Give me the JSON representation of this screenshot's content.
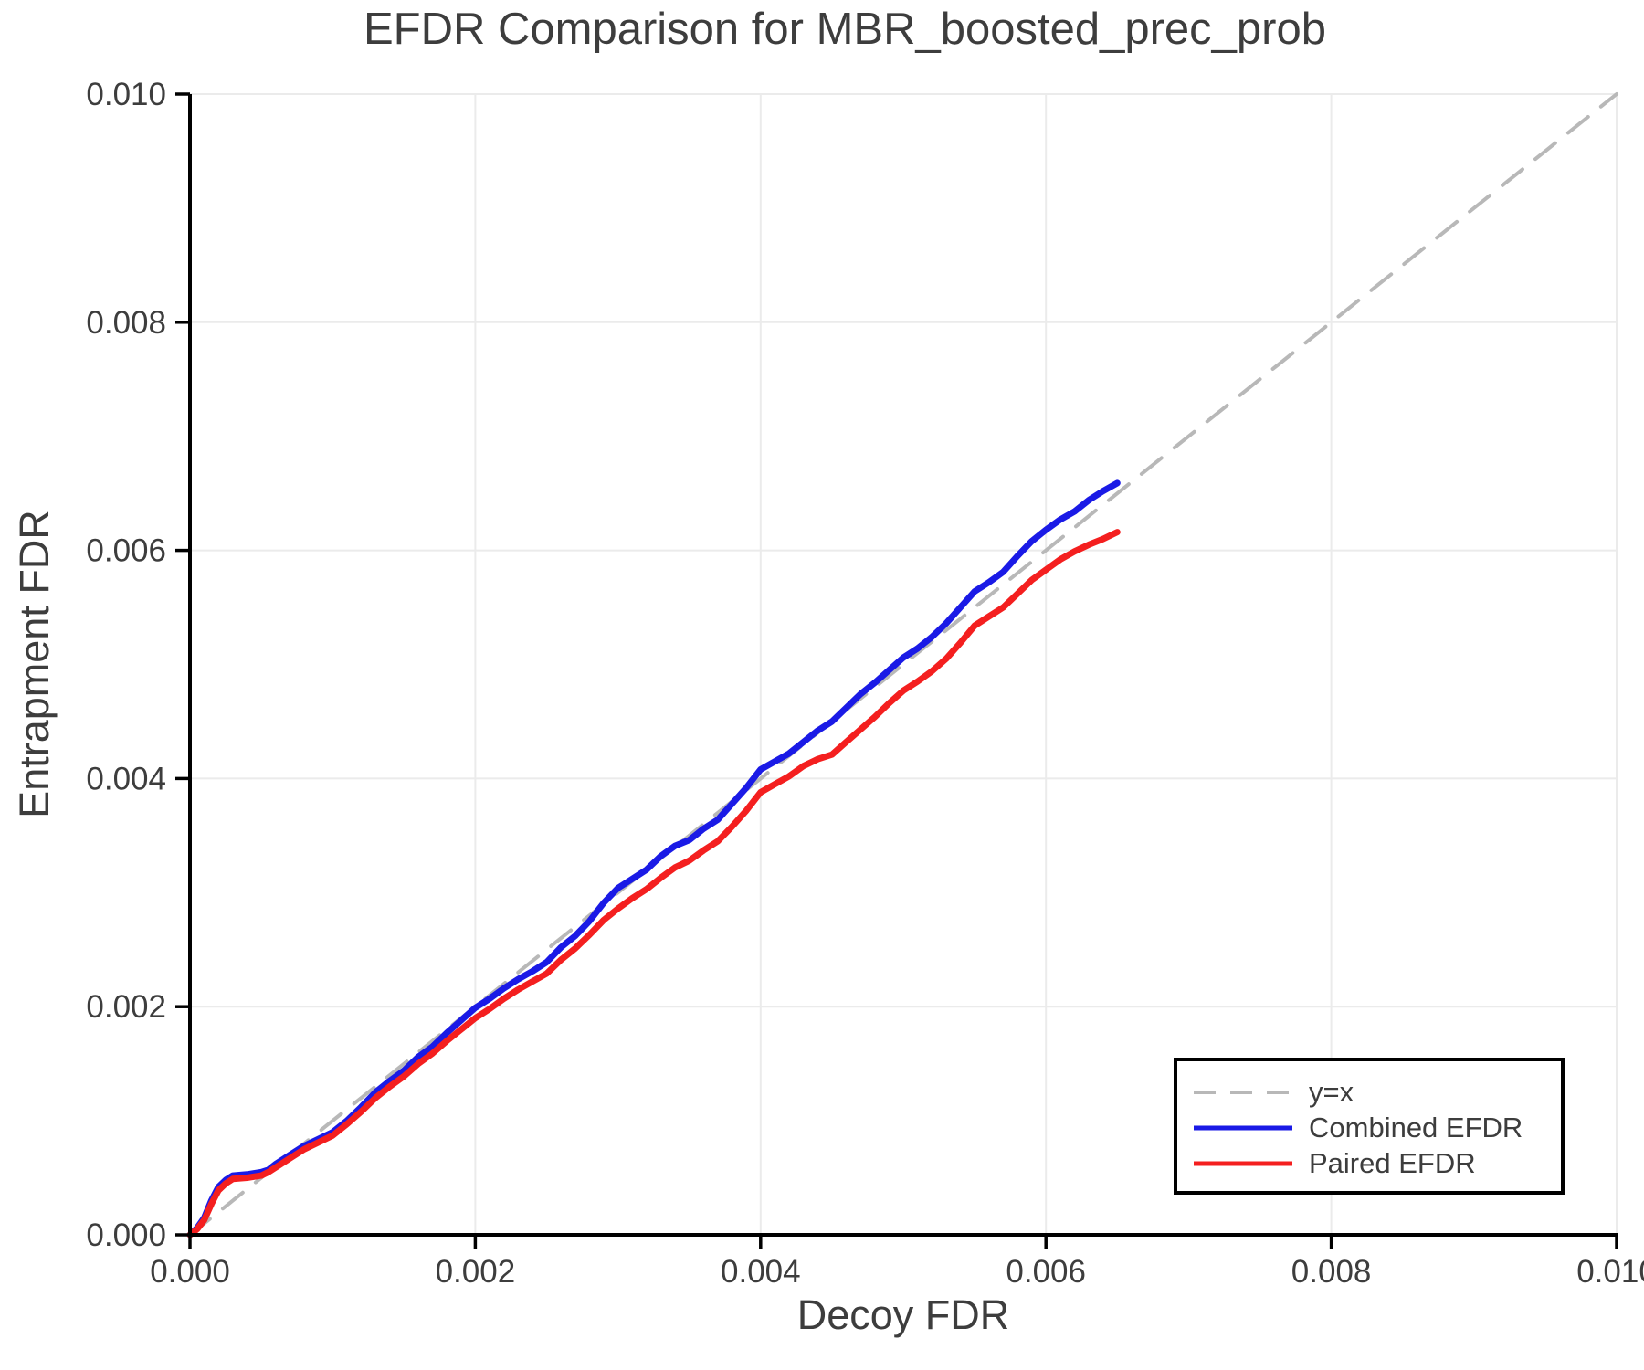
{
  "chart_data": {
    "type": "line",
    "title": "EFDR Comparison for MBR_boosted_prec_prob",
    "xlabel": "Decoy FDR",
    "ylabel": "Entrapment FDR",
    "xlim": [
      0,
      0.01
    ],
    "ylim": [
      0,
      0.01
    ],
    "xticks": [
      0,
      0.002,
      0.004,
      0.006,
      0.008,
      0.01
    ],
    "yticks": [
      0,
      0.002,
      0.004,
      0.006,
      0.008,
      0.01
    ],
    "tick_decimals": 3,
    "grid": true,
    "grid_color": "#ebebeb",
    "axis_color": "#000000",
    "text_color": "#3d3d3d",
    "legend_position": "bottom-right",
    "series": [
      {
        "name": "y=x",
        "style": "dashed",
        "color": "#b8b8b8",
        "stroke_width": 4,
        "x": [
          0,
          0.01
        ],
        "y": [
          0,
          0.01
        ]
      },
      {
        "name": "Combined EFDR",
        "style": "solid",
        "color": "#1a1ae6",
        "stroke_width": 7,
        "x": [
          0,
          5e-05,
          0.0001,
          0.00015,
          0.0002,
          0.00025,
          0.0003,
          0.0004,
          0.0005,
          0.00055,
          0.0006,
          0.0007,
          0.0008,
          0.0009,
          0.001,
          0.0011,
          0.0012,
          0.0013,
          0.0014,
          0.0015,
          0.0016,
          0.0017,
          0.0018,
          0.0019,
          0.002,
          0.0021,
          0.0022,
          0.0023,
          0.0024,
          0.0025,
          0.0026,
          0.0027,
          0.0028,
          0.0029,
          0.003,
          0.0031,
          0.0032,
          0.0033,
          0.0034,
          0.0035,
          0.0036,
          0.0037,
          0.0038,
          0.0039,
          0.004,
          0.0041,
          0.0042,
          0.0043,
          0.0044,
          0.0045,
          0.0046,
          0.0047,
          0.0048,
          0.0049,
          0.005,
          0.0051,
          0.0052,
          0.0053,
          0.0054,
          0.0055,
          0.0056,
          0.0057,
          0.0058,
          0.0059,
          0.006,
          0.0061,
          0.0062,
          0.0063,
          0.0064,
          0.0065
        ],
        "y": [
          0,
          6e-05,
          0.00015,
          0.0003,
          0.00042,
          0.00048,
          0.00052,
          0.00053,
          0.00055,
          0.00057,
          0.00062,
          0.0007,
          0.00078,
          0.00084,
          0.0009,
          0.001,
          0.00112,
          0.00125,
          0.00135,
          0.00144,
          0.00156,
          0.00165,
          0.00177,
          0.00188,
          0.00199,
          0.00207,
          0.00216,
          0.00224,
          0.00231,
          0.00239,
          0.00252,
          0.00262,
          0.00275,
          0.00291,
          0.00304,
          0.00312,
          0.0032,
          0.00332,
          0.00341,
          0.00346,
          0.00356,
          0.00364,
          0.00378,
          0.00392,
          0.00408,
          0.00415,
          0.00422,
          0.00432,
          0.00442,
          0.0045,
          0.00462,
          0.00474,
          0.00484,
          0.00495,
          0.00506,
          0.00514,
          0.00524,
          0.00536,
          0.0055,
          0.00564,
          0.00572,
          0.00581,
          0.00595,
          0.00608,
          0.00618,
          0.00627,
          0.00634,
          0.00644,
          0.00652,
          0.00659
        ]
      },
      {
        "name": "Paired EFDR",
        "style": "solid",
        "color": "#f41f1f",
        "stroke_width": 7,
        "x": [
          0,
          5e-05,
          0.0001,
          0.00015,
          0.0002,
          0.00025,
          0.0003,
          0.0004,
          0.0005,
          0.00055,
          0.0006,
          0.0007,
          0.0008,
          0.0009,
          0.001,
          0.0011,
          0.0012,
          0.0013,
          0.0014,
          0.0015,
          0.0016,
          0.0017,
          0.0018,
          0.0019,
          0.002,
          0.0021,
          0.0022,
          0.0023,
          0.0024,
          0.0025,
          0.0026,
          0.0027,
          0.0028,
          0.0029,
          0.003,
          0.0031,
          0.0032,
          0.0033,
          0.0034,
          0.0035,
          0.0036,
          0.0037,
          0.0038,
          0.0039,
          0.004,
          0.0041,
          0.0042,
          0.0043,
          0.0044,
          0.0045,
          0.0046,
          0.0047,
          0.0048,
          0.0049,
          0.005,
          0.0051,
          0.0052,
          0.0053,
          0.0054,
          0.0055,
          0.0056,
          0.0057,
          0.0058,
          0.0059,
          0.006,
          0.0061,
          0.0062,
          0.0063,
          0.0064,
          0.0065
        ],
        "y": [
          0,
          5e-05,
          0.00013,
          0.00027,
          0.00039,
          0.00045,
          0.00049,
          0.0005,
          0.00052,
          0.00055,
          0.00059,
          0.00067,
          0.00075,
          0.00081,
          0.00087,
          0.00097,
          0.00108,
          0.0012,
          0.0013,
          0.00139,
          0.0015,
          0.00159,
          0.0017,
          0.0018,
          0.0019,
          0.00198,
          0.00207,
          0.00215,
          0.00222,
          0.00229,
          0.00241,
          0.00251,
          0.00263,
          0.00276,
          0.00286,
          0.00295,
          0.00303,
          0.00313,
          0.00322,
          0.00328,
          0.00337,
          0.00345,
          0.00358,
          0.00372,
          0.00388,
          0.00395,
          0.00402,
          0.00411,
          0.00417,
          0.00421,
          0.00432,
          0.00443,
          0.00454,
          0.00466,
          0.00477,
          0.00485,
          0.00494,
          0.00505,
          0.00519,
          0.00534,
          0.00542,
          0.0055,
          0.00562,
          0.00574,
          0.00583,
          0.00592,
          0.00599,
          0.00605,
          0.0061,
          0.00616
        ]
      }
    ]
  }
}
